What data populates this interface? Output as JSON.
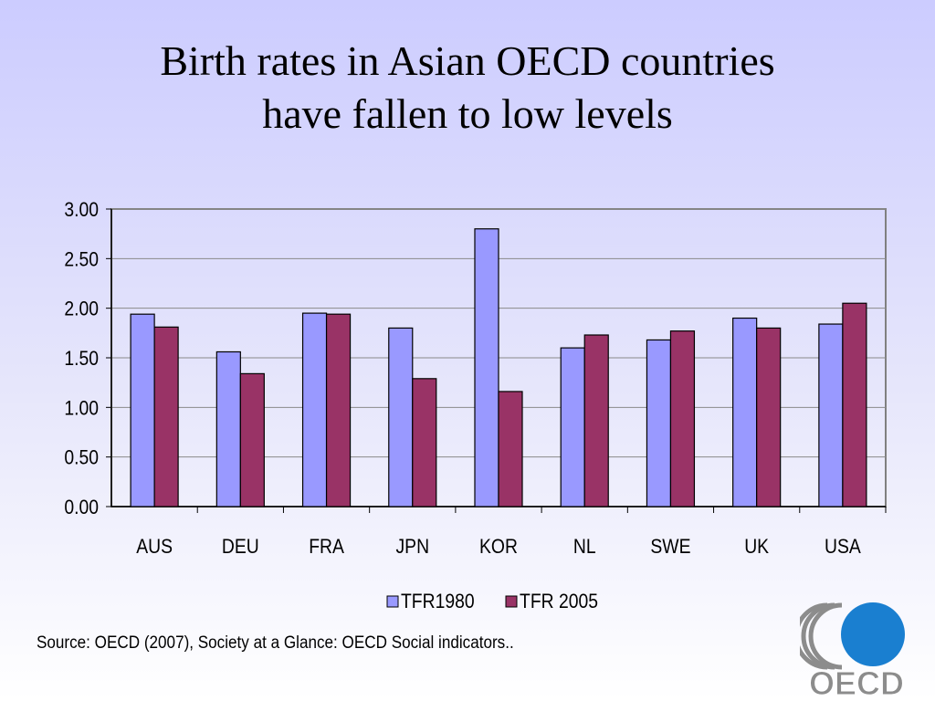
{
  "slide": {
    "title_line1": "Birth rates in Asian OECD  countries",
    "title_line2": "have fallen to low levels",
    "source": "Source: OECD (2007), Society at a Glance: OECD Social indicators..",
    "logo_text": "OECD"
  },
  "colors": {
    "series1": "#9999ff",
    "series2": "#993366",
    "logo_blue": "#1a7fd0",
    "logo_gray": "#8c8c8c"
  },
  "chart_data": {
    "type": "bar",
    "categories": [
      "AUS",
      "DEU",
      "FRA",
      "JPN",
      "KOR",
      "NL",
      "SWE",
      "UK",
      "USA"
    ],
    "series": [
      {
        "name": "TFR1980",
        "values": [
          1.94,
          1.56,
          1.95,
          1.8,
          2.8,
          1.6,
          1.68,
          1.9,
          1.84
        ]
      },
      {
        "name": "TFR 2005",
        "values": [
          1.81,
          1.34,
          1.94,
          1.29,
          1.16,
          1.73,
          1.77,
          1.8,
          2.05
        ]
      }
    ],
    "ylim": [
      0,
      3
    ],
    "yticks": [
      "0.00",
      "0.50",
      "1.00",
      "1.50",
      "2.00",
      "2.50",
      "3.00"
    ],
    "ytick_values": [
      0,
      0.5,
      1,
      1.5,
      2,
      2.5,
      3
    ],
    "grid": true,
    "legend_position": "bottom",
    "xlabel": "",
    "ylabel": ""
  }
}
